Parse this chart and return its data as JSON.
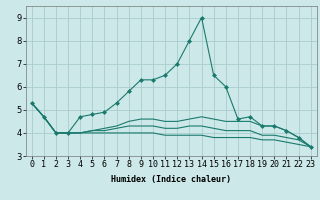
{
  "title": "",
  "xlabel": "Humidex (Indice chaleur)",
  "bg_color": "#cce8e8",
  "grid_color": "#aacccc",
  "line_color": "#1a7a6e",
  "x_data": [
    0,
    1,
    2,
    3,
    4,
    5,
    6,
    7,
    8,
    9,
    10,
    11,
    12,
    13,
    14,
    15,
    16,
    17,
    18,
    19,
    20,
    21,
    22,
    23
  ],
  "lines": [
    [
      5.3,
      4.7,
      4.0,
      4.0,
      4.7,
      4.8,
      4.9,
      5.3,
      5.8,
      6.3,
      6.3,
      6.5,
      7.0,
      8.0,
      9.0,
      6.5,
      6.0,
      4.6,
      4.7,
      4.3,
      4.3,
      4.1,
      3.8,
      3.4
    ],
    [
      5.3,
      4.7,
      4.0,
      4.0,
      4.0,
      4.1,
      4.2,
      4.3,
      4.5,
      4.6,
      4.6,
      4.5,
      4.5,
      4.6,
      4.7,
      4.6,
      4.5,
      4.5,
      4.5,
      4.3,
      4.3,
      4.1,
      3.8,
      3.4
    ],
    [
      5.3,
      4.7,
      4.0,
      4.0,
      4.0,
      4.1,
      4.1,
      4.2,
      4.3,
      4.3,
      4.3,
      4.2,
      4.2,
      4.3,
      4.3,
      4.2,
      4.1,
      4.1,
      4.1,
      3.9,
      3.9,
      3.8,
      3.7,
      3.4
    ],
    [
      5.3,
      4.7,
      4.0,
      4.0,
      4.0,
      4.0,
      4.0,
      4.0,
      4.0,
      4.0,
      4.0,
      3.9,
      3.9,
      3.9,
      3.9,
      3.8,
      3.8,
      3.8,
      3.8,
      3.7,
      3.7,
      3.6,
      3.5,
      3.4
    ]
  ],
  "ylim": [
    3.0,
    9.5
  ],
  "yticks": [
    3,
    4,
    5,
    6,
    7,
    8,
    9
  ],
  "xlim": [
    -0.5,
    23.5
  ],
  "marker_line_idx": 0,
  "title_fontsize": 7,
  "axis_fontsize": 6,
  "tick_fontsize": 6
}
